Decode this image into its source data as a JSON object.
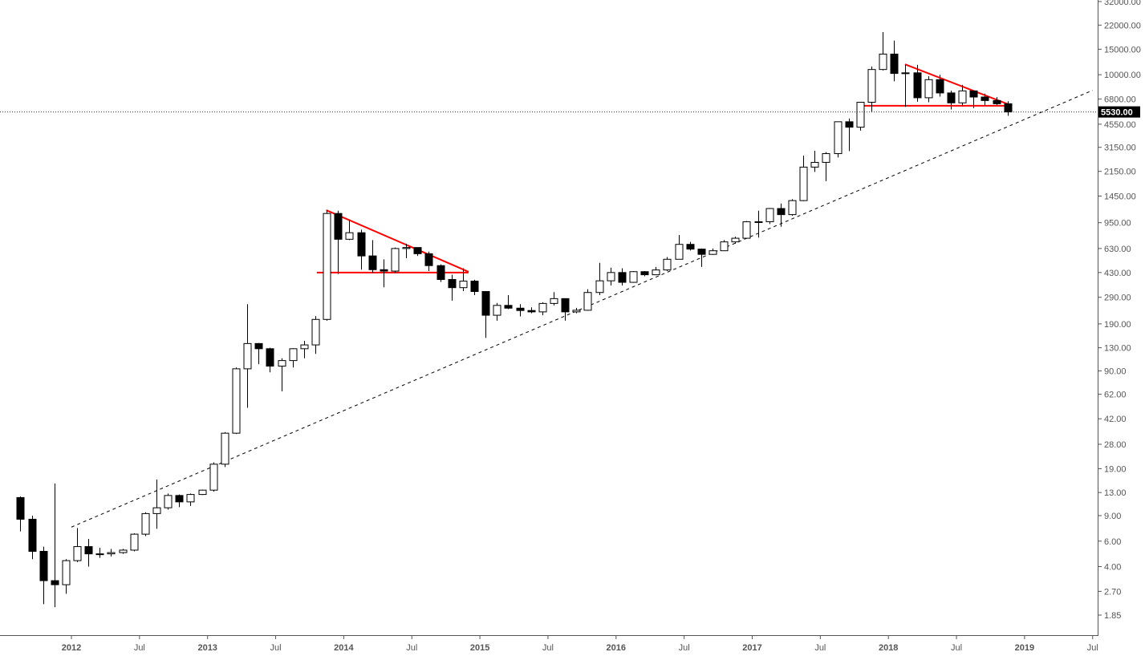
{
  "chart_data": {
    "type": "candlestick",
    "title": "",
    "xlabel": "",
    "ylabel": "",
    "y_scale": "log",
    "grid": false,
    "colors": {
      "up": "#ffffff",
      "down": "#000000",
      "outline": "#000000",
      "trendline": "#ff0000",
      "support": "#000000",
      "price_label_bg": "#000000"
    },
    "y_ticks": [
      "32000.00",
      "22000.00",
      "15000.00",
      "10000.00",
      "6800.00",
      "4550.00",
      "3150.00",
      "2150.00",
      "1450.00",
      "950.00",
      "630.00",
      "430.00",
      "290.00",
      "190.00",
      "130.00",
      "90.00",
      "62.00",
      "42.00",
      "28.00",
      "19.00",
      "13.00",
      "9.00",
      "6.00",
      "4.00",
      "2.70",
      "1.85"
    ],
    "x_ticks": [
      {
        "label": "2012",
        "date": "2012-01",
        "year": true
      },
      {
        "label": "Jul",
        "date": "2012-07"
      },
      {
        "label": "2013",
        "date": "2013-01",
        "year": true
      },
      {
        "label": "Jul",
        "date": "2013-07"
      },
      {
        "label": "2014",
        "date": "2014-01",
        "year": true
      },
      {
        "label": "Jul",
        "date": "2014-07"
      },
      {
        "label": "2015",
        "date": "2015-01",
        "year": true
      },
      {
        "label": "Jul",
        "date": "2015-07"
      },
      {
        "label": "2016",
        "date": "2016-01",
        "year": true
      },
      {
        "label": "Jul",
        "date": "2016-07"
      },
      {
        "label": "2017",
        "date": "2017-01",
        "year": true
      },
      {
        "label": "Jul",
        "date": "2017-07"
      },
      {
        "label": "2018",
        "date": "2018-01",
        "year": true
      },
      {
        "label": "Jul",
        "date": "2018-07"
      },
      {
        "label": "2019",
        "date": "2019-01",
        "year": true
      },
      {
        "label": "Jul",
        "date": "2019-07"
      }
    ],
    "last_price": 5530,
    "last_price_label": "5530.00",
    "columns": [
      "date",
      "open",
      "high",
      "low",
      "close"
    ],
    "candles": [
      [
        "2011-08",
        12,
        12.2,
        7,
        8.5
      ],
      [
        "2011-09",
        8.5,
        9,
        4.5,
        5.1
      ],
      [
        "2011-10",
        5.1,
        5.5,
        2.2,
        3.2
      ],
      [
        "2011-11",
        3.2,
        15,
        2.1,
        3.0
      ],
      [
        "2011-12",
        3.0,
        4.5,
        2.6,
        4.4
      ],
      [
        "2012-01",
        4.4,
        7.4,
        4.3,
        5.5
      ],
      [
        "2012-02",
        5.5,
        6.2,
        4.0,
        4.9
      ],
      [
        "2012-03",
        4.9,
        5.4,
        4.6,
        4.9
      ],
      [
        "2012-04",
        4.9,
        5.3,
        4.7,
        5.0
      ],
      [
        "2012-05",
        5.0,
        5.3,
        4.9,
        5.2
      ],
      [
        "2012-06",
        5.2,
        6.8,
        5.1,
        6.7
      ],
      [
        "2012-07",
        6.7,
        9.5,
        6.5,
        9.3
      ],
      [
        "2012-08",
        9.3,
        16,
        7.3,
        10.2
      ],
      [
        "2012-09",
        10.2,
        12.8,
        9.9,
        12.4
      ],
      [
        "2012-10",
        12.4,
        12.6,
        10.3,
        11.2
      ],
      [
        "2012-11",
        11.2,
        12.8,
        10.5,
        12.6
      ],
      [
        "2012-12",
        12.6,
        13.6,
        12.5,
        13.5
      ],
      [
        "2013-01",
        13.5,
        21,
        13.2,
        20.4
      ],
      [
        "2013-02",
        20.4,
        34,
        19.5,
        33.4
      ],
      [
        "2013-03",
        33.4,
        95,
        33,
        93
      ],
      [
        "2013-04",
        93,
        260,
        50,
        139
      ],
      [
        "2013-05",
        139,
        140,
        100,
        128
      ],
      [
        "2013-06",
        128,
        130,
        88,
        97
      ],
      [
        "2013-07",
        97,
        110,
        65,
        106
      ],
      [
        "2013-08",
        106,
        129,
        95,
        128
      ],
      [
        "2013-09",
        128,
        145,
        110,
        136
      ],
      [
        "2013-10",
        136,
        215,
        118,
        204
      ],
      [
        "2013-11",
        204,
        1160,
        200,
        1100
      ],
      [
        "2013-12",
        1100,
        1150,
        420,
        730
      ],
      [
        "2014-01",
        730,
        1000,
        720,
        810
      ],
      [
        "2014-02",
        810,
        850,
        450,
        560
      ],
      [
        "2014-03",
        560,
        720,
        430,
        450
      ],
      [
        "2014-04",
        450,
        530,
        340,
        440
      ],
      [
        "2014-05",
        440,
        640,
        430,
        630
      ],
      [
        "2014-06",
        630,
        680,
        540,
        640
      ],
      [
        "2014-07",
        640,
        640,
        560,
        580
      ],
      [
        "2014-08",
        580,
        600,
        440,
        480
      ],
      [
        "2014-09",
        480,
        490,
        370,
        385
      ],
      [
        "2014-10",
        385,
        415,
        275,
        338
      ],
      [
        "2014-11",
        338,
        460,
        320,
        375
      ],
      [
        "2014-12",
        375,
        383,
        300,
        318
      ],
      [
        "2015-01",
        318,
        320,
        152,
        218
      ],
      [
        "2015-02",
        218,
        265,
        200,
        255
      ],
      [
        "2015-03",
        255,
        300,
        240,
        244
      ],
      [
        "2015-04",
        244,
        260,
        214,
        235
      ],
      [
        "2015-05",
        235,
        247,
        225,
        230
      ],
      [
        "2015-06",
        230,
        268,
        218,
        263
      ],
      [
        "2015-07",
        263,
        315,
        255,
        284
      ],
      [
        "2015-08",
        284,
        285,
        200,
        230
      ],
      [
        "2015-09",
        230,
        245,
        225,
        236
      ],
      [
        "2015-10",
        236,
        330,
        235,
        313
      ],
      [
        "2015-11",
        313,
        502,
        300,
        377
      ],
      [
        "2015-12",
        377,
        465,
        350,
        430
      ],
      [
        "2016-01",
        430,
        460,
        350,
        368
      ],
      [
        "2016-02",
        368,
        440,
        365,
        436
      ],
      [
        "2016-03",
        436,
        440,
        405,
        415
      ],
      [
        "2016-04",
        415,
        470,
        412,
        448
      ],
      [
        "2016-05",
        448,
        550,
        440,
        531
      ],
      [
        "2016-06",
        531,
        780,
        530,
        673
      ],
      [
        "2016-07",
        673,
        700,
        610,
        624
      ],
      [
        "2016-08",
        624,
        630,
        470,
        574
      ],
      [
        "2016-09",
        574,
        630,
        570,
        608
      ],
      [
        "2016-10",
        608,
        720,
        605,
        700
      ],
      [
        "2016-11",
        700,
        760,
        680,
        742
      ],
      [
        "2016-12",
        742,
        975,
        740,
        964
      ],
      [
        "2017-01",
        964,
        1150,
        750,
        965
      ],
      [
        "2017-02",
        965,
        1200,
        930,
        1190
      ],
      [
        "2017-03",
        1190,
        1290,
        890,
        1080
      ],
      [
        "2017-04",
        1080,
        1380,
        1060,
        1350
      ],
      [
        "2017-05",
        1350,
        2760,
        1340,
        2300
      ],
      [
        "2017-06",
        2300,
        2980,
        2130,
        2480
      ],
      [
        "2017-07",
        2480,
        2920,
        1840,
        2850
      ],
      [
        "2017-08",
        2850,
        4740,
        2680,
        4730
      ],
      [
        "2017-09",
        4730,
        4980,
        2970,
        4340
      ],
      [
        "2017-10",
        4340,
        6470,
        4110,
        6450
      ],
      [
        "2017-11",
        6450,
        11400,
        5500,
        10860
      ],
      [
        "2017-12",
        10860,
        19700,
        10700,
        13880
      ],
      [
        "2018-01",
        13880,
        17200,
        9000,
        10200
      ],
      [
        "2018-02",
        10200,
        11700,
        6000,
        10300
      ],
      [
        "2018-03",
        10300,
        11700,
        6500,
        6930
      ],
      [
        "2018-04",
        6930,
        9750,
        6450,
        9240
      ],
      [
        "2018-05",
        9240,
        9990,
        7050,
        7480
      ],
      [
        "2018-06",
        7480,
        7760,
        5750,
        6390
      ],
      [
        "2018-07",
        6390,
        8500,
        6070,
        7730
      ],
      [
        "2018-08",
        7730,
        7750,
        5880,
        7010
      ],
      [
        "2018-09",
        7010,
        7400,
        6100,
        6630
      ],
      [
        "2018-10",
        6630,
        7000,
        6180,
        6300
      ],
      [
        "2018-11",
        6300,
        6550,
        5200,
        5530
      ]
    ],
    "annotations": [
      {
        "name": "long-term-support-line",
        "style": "dashed",
        "color": "#000000",
        "from": {
          "date": "2012-01",
          "price": 7.5
        },
        "to": {
          "date": "2019-07",
          "price": 7800
        }
      },
      {
        "name": "triangle-2014-upper",
        "style": "solid",
        "color": "#ff0000",
        "from": {
          "date": "2013-11-15",
          "price": 1160
        },
        "to": {
          "date": "2014-12-01",
          "price": 435
        }
      },
      {
        "name": "triangle-2014-base",
        "style": "solid",
        "color": "#ff0000",
        "from": {
          "date": "2013-10-20",
          "price": 430
        },
        "to": {
          "date": "2014-12-01",
          "price": 430
        }
      },
      {
        "name": "triangle-2018-upper",
        "style": "solid",
        "color": "#ff0000",
        "from": {
          "date": "2018-02-15",
          "price": 11800
        },
        "to": {
          "date": "2018-11-25",
          "price": 6150
        }
      },
      {
        "name": "triangle-2018-base",
        "style": "solid",
        "color": "#ff0000",
        "from": {
          "date": "2017-10-20",
          "price": 6100
        },
        "to": {
          "date": "2018-11-25",
          "price": 6100
        }
      }
    ]
  }
}
